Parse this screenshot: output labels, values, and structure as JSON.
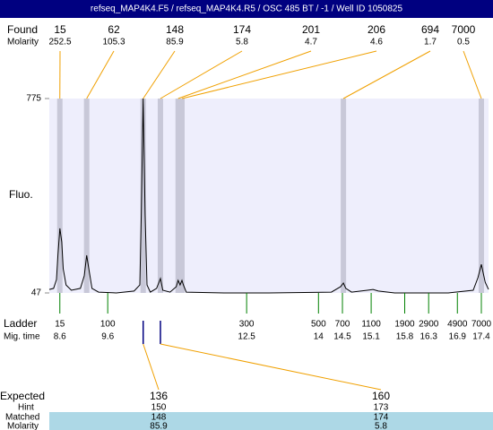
{
  "chart_data": {
    "type": "electropherogram",
    "title": "refseq_MAP4K4.F5 / refseq_MAP4K4.R5 / OSC 485 BT / -1 / Well ID 1050825",
    "y_label": "Fluo.",
    "ylim": [
      47,
      775
    ],
    "yticks": [
      47,
      775
    ],
    "xlim": [
      8.38,
      17.55
    ],
    "color": "#000000",
    "trace": {
      "x": [
        8.38,
        8.47,
        8.53,
        8.56,
        8.6,
        8.64,
        8.67,
        8.73,
        8.84,
        9.03,
        9.11,
        9.16,
        9.22,
        9.27,
        9.41,
        9.78,
        10.15,
        10.27,
        10.3,
        10.34,
        10.38,
        10.42,
        10.49,
        10.62,
        10.7,
        10.75,
        10.9,
        11.03,
        11.07,
        11.11,
        11.15,
        11.18,
        11.24,
        12.03,
        12.96,
        14.27,
        14.46,
        14.52,
        14.57,
        14.69,
        15.02,
        15.14,
        15.25,
        15.59,
        16.71,
        17.23,
        17.33,
        17.4,
        17.48,
        17.55
      ],
      "y": [
        60,
        64,
        97,
        188,
        289,
        238,
        138,
        77,
        57,
        64,
        111,
        188,
        121,
        64,
        50,
        47,
        54,
        77,
        339,
        775,
        339,
        77,
        50,
        64,
        101,
        57,
        50,
        70,
        94,
        77,
        94,
        77,
        50,
        47,
        47,
        50,
        70,
        84,
        64,
        50,
        57,
        60,
        54,
        47,
        47,
        57,
        104,
        154,
        87,
        60
      ]
    },
    "found": {
      "label": "Found",
      "molarity_label": "Molarity",
      "sizes": [
        15,
        62,
        148,
        174,
        201,
        206,
        694,
        7000
      ],
      "molarity": [
        252.5,
        105.3,
        85.9,
        5.8,
        4.7,
        4.6,
        1.7,
        0.5
      ],
      "times": [
        8.6,
        9.16,
        10.34,
        10.7,
        11.07,
        11.15,
        14.52,
        17.4
      ]
    },
    "ladder": {
      "label": "Ladder",
      "time_label": "Mig. time",
      "sizes": [
        15,
        100,
        300,
        500,
        700,
        1100,
        1900,
        2900,
        4900,
        7000
      ],
      "times": [
        8.6,
        9.6,
        12.5,
        14,
        14.5,
        15.1,
        15.8,
        16.3,
        16.9,
        17.4
      ]
    },
    "expected": {
      "label": "Expected",
      "hint_label": "Hint",
      "matched_label": "Matched",
      "molarity_label": "Molarity",
      "sizes": [
        136,
        160
      ],
      "hint": [
        150,
        173
      ],
      "matched": [
        148,
        174
      ],
      "molarity": [
        85.9,
        5.8
      ]
    }
  }
}
